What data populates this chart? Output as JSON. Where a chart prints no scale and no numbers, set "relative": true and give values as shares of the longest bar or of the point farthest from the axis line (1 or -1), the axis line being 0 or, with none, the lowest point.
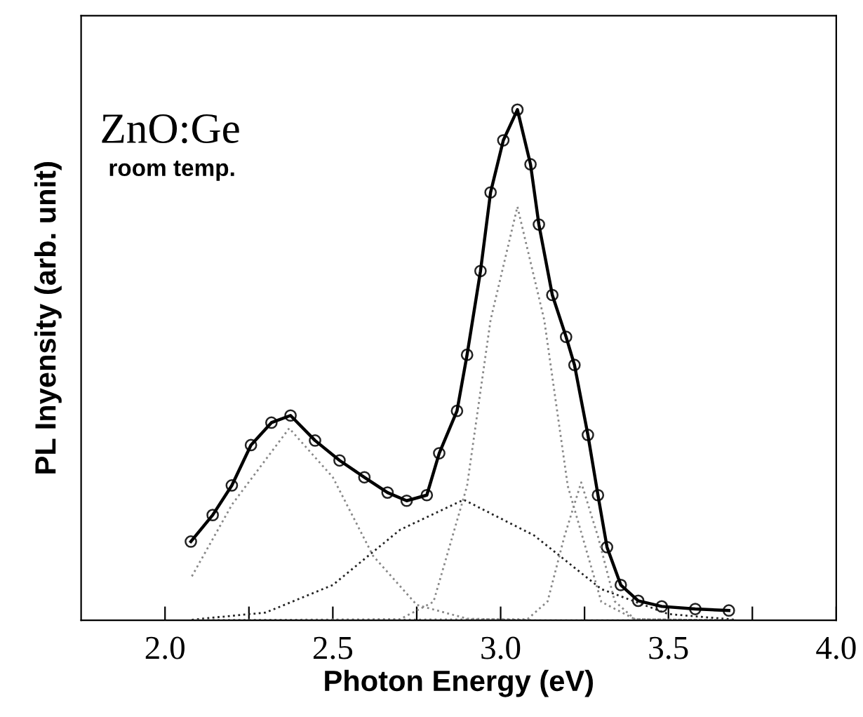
{
  "chart_data": {
    "type": "line",
    "xlabel": "Photon Energy (eV)",
    "ylabel": "PL Inyensity (arb. unit)",
    "relative": true,
    "xlim": [
      1.75,
      4.0
    ],
    "xticks": [
      {
        "value": 2.0,
        "label": "2.0"
      },
      {
        "value": 2.25,
        "label": null
      },
      {
        "value": 2.5,
        "label": "2.5"
      },
      {
        "value": 2.75,
        "label": null
      },
      {
        "value": 3.0,
        "label": "3.0"
      },
      {
        "value": 3.25,
        "label": null
      },
      {
        "value": 3.5,
        "label": "3.5"
      },
      {
        "value": 3.75,
        "label": null
      },
      {
        "value": 4.0,
        "label": "4.0"
      }
    ],
    "tick_labels": "x",
    "grid": false,
    "annotations": [
      "ZnO:Ge",
      "room temp."
    ],
    "series": [
      {
        "type": "scatter",
        "marker": "circle",
        "color": "#222222",
        "x": [
          2.077,
          2.142,
          2.199,
          2.256,
          2.317,
          2.374,
          2.447,
          2.52,
          2.594,
          2.663,
          2.72,
          2.78,
          2.817,
          2.87,
          2.9,
          2.94,
          2.97,
          3.008,
          3.05,
          3.089,
          3.114,
          3.154,
          3.195,
          3.22,
          3.26,
          3.29,
          3.317,
          3.358,
          3.41,
          3.48,
          3.58,
          3.68
        ],
        "values": [
          0.154,
          0.206,
          0.264,
          0.343,
          0.387,
          0.401,
          0.352,
          0.313,
          0.28,
          0.25,
          0.234,
          0.245,
          0.327,
          0.41,
          0.52,
          0.684,
          0.838,
          0.94,
          1.0,
          0.893,
          0.775,
          0.637,
          0.555,
          0.5,
          0.363,
          0.245,
          0.143,
          0.069,
          0.038,
          0.027,
          0.022,
          0.019
        ]
      },
      {
        "marker": "none",
        "line_style": "solid",
        "color": "#000000",
        "x": [
          2.077,
          2.142,
          2.199,
          2.256,
          2.317,
          2.374,
          2.447,
          2.52,
          2.594,
          2.663,
          2.72,
          2.78,
          2.817,
          2.87,
          2.9,
          2.94,
          2.97,
          3.008,
          3.05,
          3.089,
          3.114,
          3.154,
          3.195,
          3.22,
          3.26,
          3.29,
          3.317,
          3.358,
          3.41,
          3.48,
          3.58,
          3.68
        ],
        "values": [
          0.154,
          0.206,
          0.264,
          0.343,
          0.387,
          0.401,
          0.352,
          0.313,
          0.28,
          0.25,
          0.234,
          0.245,
          0.327,
          0.41,
          0.52,
          0.684,
          0.838,
          0.94,
          1.0,
          0.893,
          0.775,
          0.637,
          0.555,
          0.5,
          0.363,
          0.245,
          0.143,
          0.069,
          0.038,
          0.027,
          0.022,
          0.019
        ]
      },
      {
        "marker": "none",
        "line_style": "dotted",
        "color": "#888888",
        "x": [
          2.08,
          2.2,
          2.37,
          2.5,
          2.62,
          2.75,
          2.9,
          3.1,
          3.7
        ],
        "values": [
          0.086,
          0.227,
          0.376,
          0.28,
          0.126,
          0.03,
          0.003,
          0.0,
          0.0
        ]
      },
      {
        "marker": "none",
        "line_style": "dotted",
        "color": "#222222",
        "x": [
          2.08,
          2.3,
          2.5,
          2.7,
          2.89,
          3.1,
          3.3,
          3.5,
          3.7
        ],
        "values": [
          0.001,
          0.015,
          0.069,
          0.177,
          0.236,
          0.166,
          0.061,
          0.012,
          0.001
        ]
      },
      {
        "marker": "none",
        "line_style": "dotted",
        "color": "#888888",
        "x": [
          2.08,
          2.7,
          2.8,
          2.9,
          2.97,
          3.05,
          3.13,
          3.2,
          3.3,
          3.4,
          3.7
        ],
        "values": [
          0.0,
          0.002,
          0.036,
          0.263,
          0.588,
          0.81,
          0.588,
          0.263,
          0.036,
          0.002,
          0.0
        ]
      },
      {
        "marker": "none",
        "line_style": "dotted",
        "color": "#888888",
        "x": [
          2.08,
          3.08,
          3.14,
          3.19,
          3.24,
          3.29,
          3.34,
          3.4,
          3.7
        ],
        "values": [
          0.0,
          0.002,
          0.037,
          0.164,
          0.27,
          0.164,
          0.037,
          0.002,
          0.0
        ]
      }
    ]
  }
}
